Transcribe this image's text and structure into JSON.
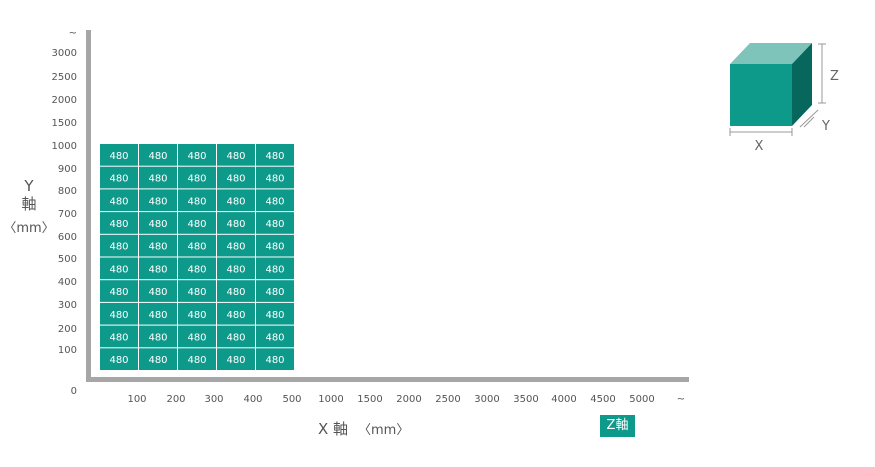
{
  "chart_data": {
    "type": "table",
    "cell_value": "480",
    "x_ticks": [
      "100",
      "200",
      "300",
      "400",
      "500",
      "1000",
      "1500",
      "2000",
      "2500",
      "3000",
      "3500",
      "4000",
      "4500",
      "5000",
      "~"
    ],
    "y_ticks": [
      "~",
      "3000",
      "2500",
      "2000",
      "1500",
      "1000",
      "900",
      "800",
      "700",
      "600",
      "500",
      "400",
      "300",
      "200",
      "100",
      "0"
    ],
    "grid_columns": [
      "100",
      "200",
      "300",
      "400",
      "500"
    ],
    "grid_rows": [
      "1000",
      "900",
      "800",
      "700",
      "600",
      "500",
      "400",
      "300",
      "200",
      "100"
    ],
    "x_title": "X 軸",
    "x_unit": "〈mm〉",
    "y_title_letter": "Y",
    "y_title_char": "軸",
    "y_unit": "〈mm〉",
    "z_badge": "Z軸"
  },
  "cube": {
    "x_label": "X",
    "y_label": "Y",
    "z_label": "Z"
  },
  "colors": {
    "cell": "#0e9a8b",
    "axis": "#a6a6a6",
    "cube_front": "#0e9a8b",
    "cube_top": "#7fc4ba",
    "cube_side": "#08675d"
  }
}
